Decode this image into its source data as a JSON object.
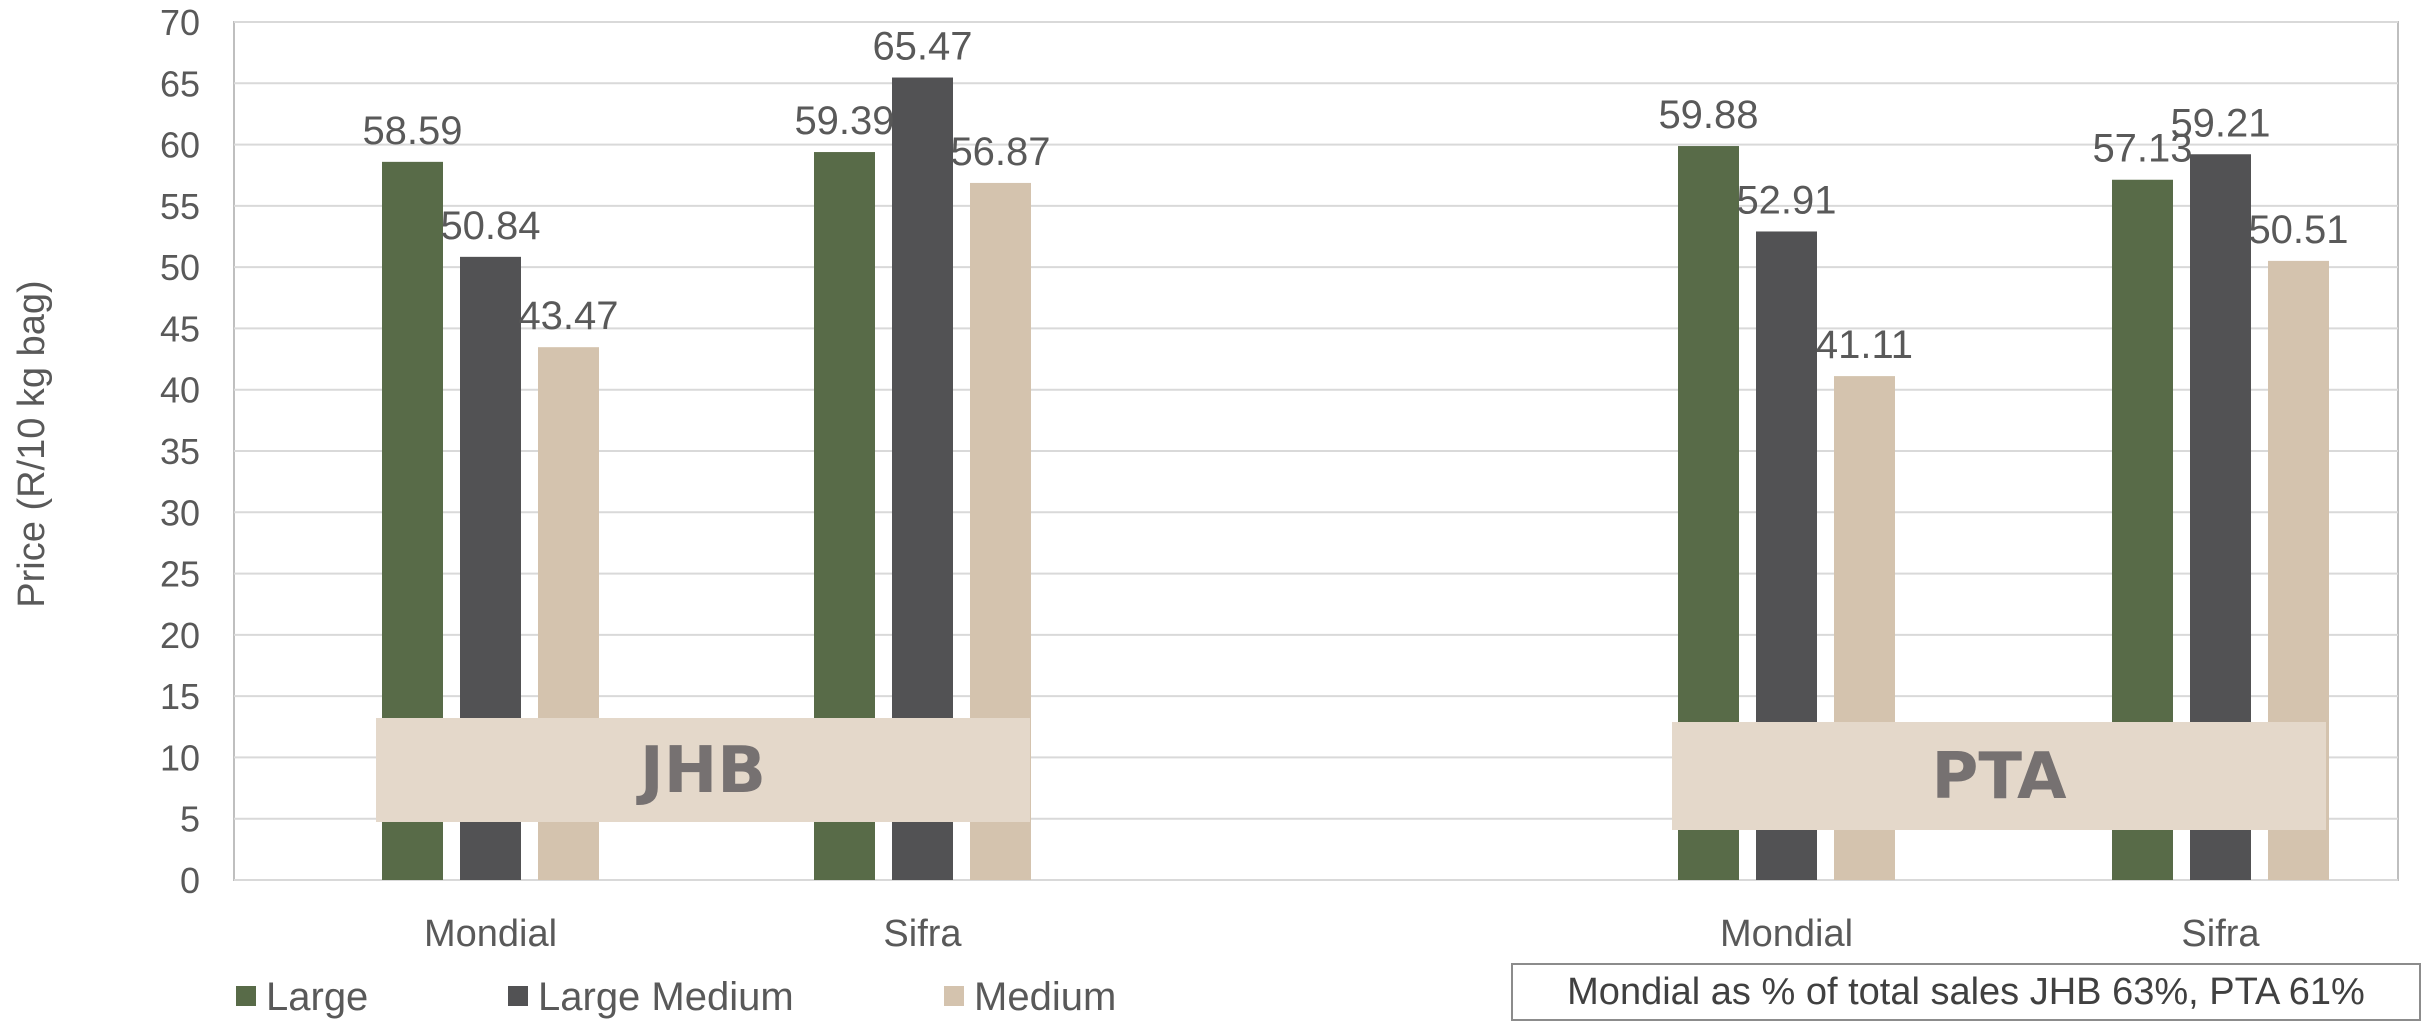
{
  "chart_data": {
    "type": "bar",
    "ylabel": "Price (R/10 kg bag)",
    "ylim": [
      0,
      70
    ],
    "ytick_step": 5,
    "ytick_labels": [
      "0",
      "5",
      "10",
      "15",
      "20",
      "25",
      "30",
      "35",
      "40",
      "45",
      "50",
      "55",
      "60",
      "65",
      "70"
    ],
    "grid": true,
    "legend_position": "bottom-left",
    "groups": [
      {
        "region": "JHB",
        "categories": [
          "Mondial",
          "Sifra"
        ]
      },
      {
        "region": "PTA",
        "categories": [
          "Mondial",
          "Sifra"
        ]
      }
    ],
    "categories": [
      "Mondial",
      "Sifra",
      "Mondial",
      "Sifra"
    ],
    "series": [
      {
        "name": "Large",
        "color": "#586b48",
        "values": [
          58.59,
          59.39,
          59.88,
          57.13
        ]
      },
      {
        "name": "Large Medium",
        "color": "#525254",
        "values": [
          50.84,
          65.47,
          52.91,
          59.21
        ]
      },
      {
        "name": "Medium",
        "color": "#d4c3ae",
        "values": [
          43.47,
          56.87,
          41.11,
          50.51
        ]
      }
    ],
    "note": "Mondial as % of total sales JHB 63%, PTA 61%"
  },
  "colors": {
    "grid": "#d9d9d9",
    "region_box": "#e4d8ca",
    "region_text": "#767171"
  }
}
